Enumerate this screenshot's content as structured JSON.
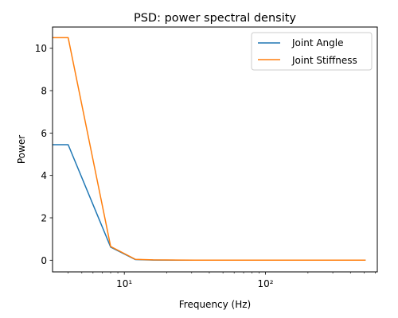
{
  "chart_data": {
    "type": "line",
    "title": "PSD: power spectral density",
    "xlabel": "Frequency (Hz)",
    "ylabel": "Power",
    "xscale": "log",
    "xlim": [
      3.1,
      620
    ],
    "ylim": [
      -0.55,
      11.0
    ],
    "xticks": [
      {
        "value": 10,
        "label": "10¹"
      },
      {
        "value": 100,
        "label": "10²"
      }
    ],
    "yticks": [
      0,
      2,
      4,
      6,
      8,
      10
    ],
    "grid": false,
    "legend_position": "top-right",
    "series": [
      {
        "name": "Joint Angle",
        "color": "#1f77b4",
        "x": [
          2,
          4,
          8,
          12,
          16,
          24,
          32,
          64,
          128,
          256,
          512
        ],
        "y": [
          5.45,
          5.45,
          0.62,
          0.03,
          0.01,
          0.005,
          0.003,
          0.002,
          0.001,
          0.001,
          0.001
        ]
      },
      {
        "name": "Joint Stiffness",
        "color": "#ff7f0e",
        "x": [
          2,
          4,
          8,
          12,
          16,
          24,
          32,
          64,
          128,
          256,
          512
        ],
        "y": [
          10.5,
          10.5,
          0.65,
          0.04,
          0.015,
          0.008,
          0.005,
          0.003,
          0.002,
          0.001,
          0.001
        ]
      }
    ]
  }
}
